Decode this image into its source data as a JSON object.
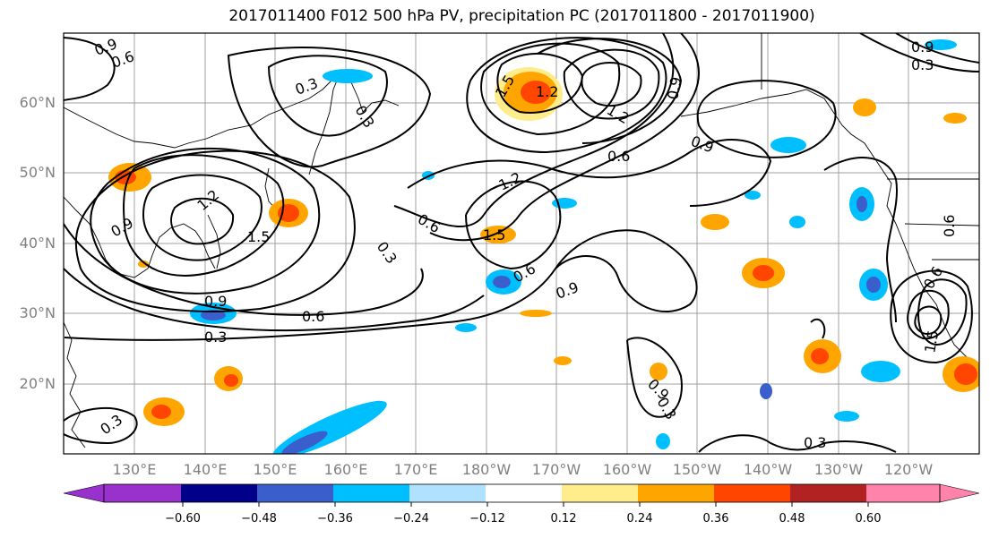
{
  "title": "2017011400 F012 500 hPa PV, precipitation PC (2017011800 - 2017011900)",
  "lat_labels": [
    "60°N",
    "50°N",
    "40°N",
    "30°N",
    "20°N"
  ],
  "lon_labels": [
    "130°E",
    "140°E",
    "150°E",
    "160°E",
    "170°E",
    "180°W",
    "170°W",
    "160°W",
    "150°W",
    "140°W",
    "130°W",
    "120°W"
  ],
  "colorbar": {
    "ticks": [
      "−0.60",
      "−0.48",
      "−0.36",
      "−0.24",
      "−0.12",
      "0.12",
      "0.24",
      "0.36",
      "0.48",
      "0.60"
    ],
    "colors": [
      "#9932CC",
      "#00008B",
      "#3A5FCD",
      "#00BFFF",
      "#B0E2FF",
      "#FFFFFF",
      "#FFEC8B",
      "#FFA500",
      "#FF4500",
      "#B22222",
      "#FF83AB"
    ]
  },
  "contour_labels": {
    "a": "0.9",
    "b": "0.6",
    "c": "0.3",
    "d": "1.5",
    "e": "1.2",
    "f": "0.6",
    "g": "0.3",
    "h": "0.9",
    "i": "0.6",
    "j": "0.3",
    "k": "0.6",
    "l": "0.9",
    "m": "1.2",
    "n": "1.5",
    "o": "0.6",
    "p": "0.9",
    "q": "0.9",
    "r": "0.3",
    "s": "0.3",
    "t": "0.9",
    "u": "0.3",
    "v": "1.2",
    "w": "1.5",
    "x": "0.6",
    "y": "0.9",
    "z": "0.3",
    "aa": "0.9",
    "ab": "0.6",
    "ac": "0.3",
    "ad": "1.5",
    "ae": "1.2"
  }
}
